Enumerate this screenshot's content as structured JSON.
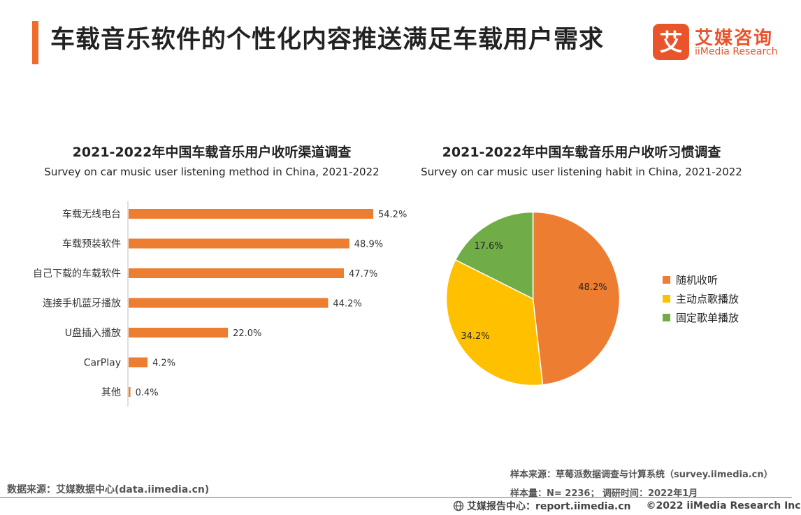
{
  "header": {
    "title": "车载音乐软件的个性化内容推送满足车载用户需求"
  },
  "logo": {
    "cn": "艾媒咨询",
    "en": "iiMedia Research",
    "mark_char": "艾"
  },
  "colors": {
    "accent": "#f06b2c",
    "bar": "#ed7d31",
    "pie": [
      "#ed7d31",
      "#ffc000",
      "#70ad47"
    ],
    "logo": "#e9542a"
  },
  "chart_data": [
    {
      "type": "bar",
      "orientation": "horizontal",
      "title": "2021-2022年中国车载音乐用户收听渠道调查",
      "subtitle": "Survey on car music user listening method in China, 2021-2022",
      "categories": [
        "车载无线电台",
        "车载预装软件",
        "自己下载的车载软件",
        "连接手机蓝牙播放",
        "U盘插入播放",
        "CarPlay",
        "其他"
      ],
      "values": [
        54.2,
        48.9,
        47.7,
        44.2,
        22.0,
        4.2,
        0.4
      ],
      "value_labels": [
        "54.2%",
        "48.9%",
        "47.7%",
        "44.2%",
        "22.0%",
        "4.2%",
        "0.4%"
      ],
      "xlim": [
        0,
        60
      ],
      "grid": false
    },
    {
      "type": "pie",
      "title": "2021-2022年中国车载音乐用户收听习惯调查",
      "subtitle": "Survey on car music user listening habit in China, 2021-2022",
      "labels": [
        "随机收听",
        "主动点歌播放",
        "固定歌单播放"
      ],
      "values": [
        48.2,
        34.2,
        17.6
      ],
      "value_labels": [
        "48.2%",
        "34.2%",
        "17.6%"
      ],
      "legend": "right"
    }
  ],
  "notes": {
    "sample_source": "样本来源：草莓派数据调查与计算系统（survey.iimedia.cn）",
    "sample_size": "样本量：N= 2236； 调研时间：2022年1月"
  },
  "source": "数据来源：艾媒数据中心(data.iimedia.cn)",
  "footer": {
    "report": "艾媒报告中心：report.iimedia.cn",
    "copyright": "©2022  iiMedia Research  Inc"
  }
}
